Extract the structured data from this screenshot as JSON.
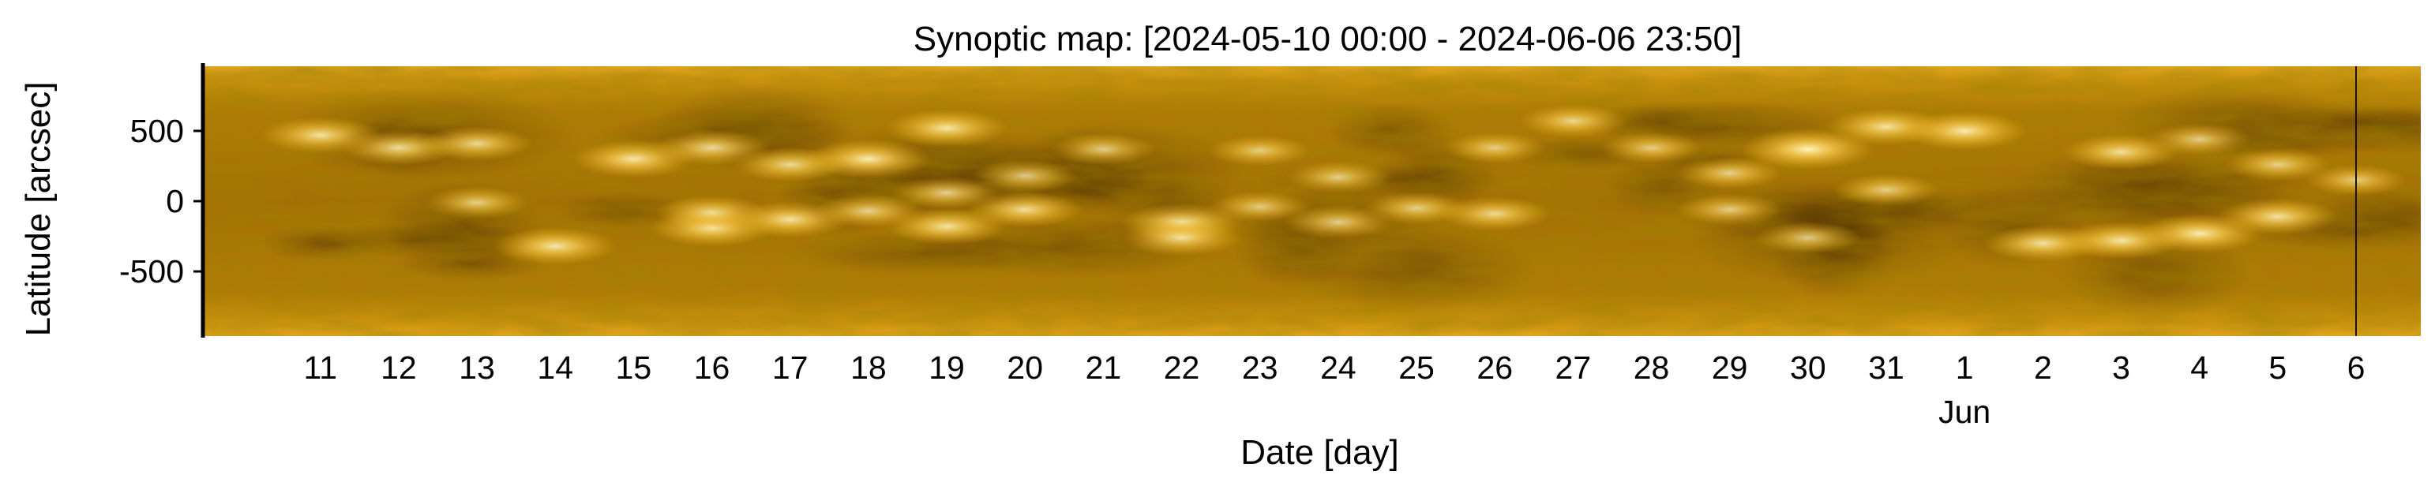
{
  "chart_data": {
    "type": "heatmap",
    "title": "Synoptic map: [2024-05-10 00:00 - 2024-06-06 23:50]",
    "xlabel": "Date [day]",
    "ylabel": "Latitude [arcsec]",
    "colormap": "solar EUV (dark brown → amber → pale yellow)",
    "x_start": "2024-05-10 00:00",
    "x_end": "2024-06-06 23:50",
    "x_tick_labels": [
      "11",
      "12",
      "13",
      "14",
      "15",
      "16",
      "17",
      "18",
      "19",
      "20",
      "21",
      "22",
      "23",
      "24",
      "25",
      "26",
      "27",
      "28",
      "29",
      "30",
      "31",
      "1",
      "2",
      "3",
      "4",
      "5",
      "6"
    ],
    "x_tick_dates": [
      "2024-05-11",
      "2024-05-12",
      "2024-05-13",
      "2024-05-14",
      "2024-05-15",
      "2024-05-16",
      "2024-05-17",
      "2024-05-18",
      "2024-05-19",
      "2024-05-20",
      "2024-05-21",
      "2024-05-22",
      "2024-05-23",
      "2024-05-24",
      "2024-05-25",
      "2024-05-26",
      "2024-05-27",
      "2024-05-28",
      "2024-05-29",
      "2024-05-30",
      "2024-05-31",
      "2024-06-01",
      "2024-06-02",
      "2024-06-03",
      "2024-06-04",
      "2024-06-05",
      "2024-06-06"
    ],
    "x_secondary_label": "Jun",
    "y_ticks": [
      500,
      0,
      -500
    ],
    "y_tick_labels": [
      "500",
      "0",
      "-500"
    ],
    "ylim": [
      -960,
      960
    ],
    "grid": false,
    "legend": "none",
    "marker_date": "2024-06-06 12:00",
    "bright_regions": [
      {
        "date": "2024-05-11",
        "lat": 470,
        "intensity": 0.8
      },
      {
        "date": "2024-05-12",
        "lat": 380,
        "intensity": 0.75
      },
      {
        "date": "2024-05-13",
        "lat": 410,
        "intensity": 0.7
      },
      {
        "date": "2024-05-13",
        "lat": -10,
        "intensity": 0.6
      },
      {
        "date": "2024-05-14",
        "lat": -320,
        "intensity": 0.85
      },
      {
        "date": "2024-05-15",
        "lat": 300,
        "intensity": 0.85
      },
      {
        "date": "2024-05-16",
        "lat": 380,
        "intensity": 0.75
      },
      {
        "date": "2024-05-16",
        "lat": -190,
        "intensity": 0.85
      },
      {
        "date": "2024-05-16",
        "lat": -80,
        "intensity": 0.7
      },
      {
        "date": "2024-05-17",
        "lat": 260,
        "intensity": 0.7
      },
      {
        "date": "2024-05-17",
        "lat": -130,
        "intensity": 0.8
      },
      {
        "date": "2024-05-18",
        "lat": 300,
        "intensity": 0.9
      },
      {
        "date": "2024-05-18",
        "lat": -70,
        "intensity": 0.65
      },
      {
        "date": "2024-05-19",
        "lat": 520,
        "intensity": 0.85
      },
      {
        "date": "2024-05-19",
        "lat": 60,
        "intensity": 0.65
      },
      {
        "date": "2024-05-19",
        "lat": -180,
        "intensity": 0.8
      },
      {
        "date": "2024-05-20",
        "lat": 180,
        "intensity": 0.6
      },
      {
        "date": "2024-05-20",
        "lat": -60,
        "intensity": 0.75
      },
      {
        "date": "2024-05-21",
        "lat": 370,
        "intensity": 0.6
      },
      {
        "date": "2024-05-22",
        "lat": -150,
        "intensity": 0.85
      },
      {
        "date": "2024-05-22",
        "lat": -260,
        "intensity": 0.8
      },
      {
        "date": "2024-05-23",
        "lat": 360,
        "intensity": 0.55
      },
      {
        "date": "2024-05-23",
        "lat": -40,
        "intensity": 0.55
      },
      {
        "date": "2024-05-24",
        "lat": 170,
        "intensity": 0.6
      },
      {
        "date": "2024-05-24",
        "lat": -150,
        "intensity": 0.65
      },
      {
        "date": "2024-05-25",
        "lat": -50,
        "intensity": 0.6
      },
      {
        "date": "2024-05-26",
        "lat": 380,
        "intensity": 0.55
      },
      {
        "date": "2024-05-26",
        "lat": -90,
        "intensity": 0.7
      },
      {
        "date": "2024-05-27",
        "lat": 570,
        "intensity": 0.65
      },
      {
        "date": "2024-05-28",
        "lat": 380,
        "intensity": 0.55
      },
      {
        "date": "2024-05-29",
        "lat": 200,
        "intensity": 0.6
      },
      {
        "date": "2024-05-29",
        "lat": -60,
        "intensity": 0.6
      },
      {
        "date": "2024-05-30",
        "lat": 370,
        "intensity": 1.0
      },
      {
        "date": "2024-05-30",
        "lat": -260,
        "intensity": 0.6
      },
      {
        "date": "2024-05-31",
        "lat": 530,
        "intensity": 0.8
      },
      {
        "date": "2024-06-01",
        "lat": 500,
        "intensity": 0.9
      },
      {
        "date": "2024-05-31",
        "lat": 80,
        "intensity": 0.6
      },
      {
        "date": "2024-06-02",
        "lat": -300,
        "intensity": 0.8
      },
      {
        "date": "2024-06-03",
        "lat": 350,
        "intensity": 0.75
      },
      {
        "date": "2024-06-03",
        "lat": -280,
        "intensity": 0.85
      },
      {
        "date": "2024-06-04",
        "lat": -230,
        "intensity": 0.9
      },
      {
        "date": "2024-06-04",
        "lat": 440,
        "intensity": 0.6
      },
      {
        "date": "2024-06-05",
        "lat": -110,
        "intensity": 0.8
      },
      {
        "date": "2024-06-05",
        "lat": 260,
        "intensity": 0.6
      },
      {
        "date": "2024-06-06",
        "lat": 150,
        "intensity": 0.55
      }
    ]
  }
}
